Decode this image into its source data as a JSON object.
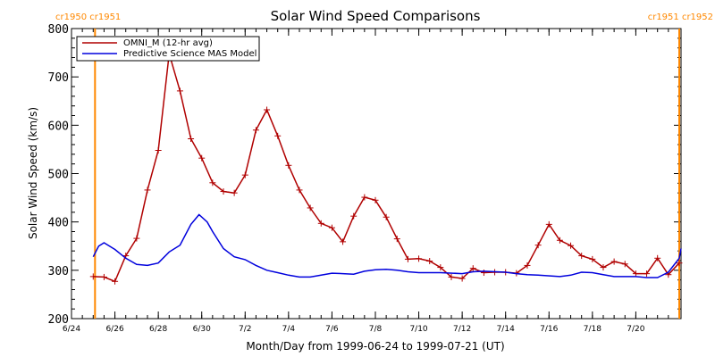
{
  "colors": {
    "observed": "#b00000",
    "model": "#0000dd",
    "carrington": "#ff8800",
    "axis": "#000000"
  },
  "chart_data": {
    "type": "line",
    "title": "Solar Wind Speed Comparisons",
    "xlabel": "Month/Day from 1999-06-24 to 1999-07-21 (UT)",
    "ylabel": "Solar Wind Speed (km/s)",
    "xlim": [
      "1999-06-24T00:00",
      "1999-07-22T02:00"
    ],
    "ylim": [
      200,
      800
    ],
    "x_tick_labels": [
      {
        "date": "1999-06-24",
        "label": "6/24"
      },
      {
        "date": "1999-06-26",
        "label": "6/26"
      },
      {
        "date": "1999-06-28",
        "label": "6/28"
      },
      {
        "date": "1999-06-30",
        "label": "6/30"
      },
      {
        "date": "1999-07-02",
        "label": "7/2"
      },
      {
        "date": "1999-07-04",
        "label": "7/4"
      },
      {
        "date": "1999-07-06",
        "label": "7/6"
      },
      {
        "date": "1999-07-08",
        "label": "7/8"
      },
      {
        "date": "1999-07-10",
        "label": "7/10"
      },
      {
        "date": "1999-07-12",
        "label": "7/12"
      },
      {
        "date": "1999-07-14",
        "label": "7/14"
      },
      {
        "date": "1999-07-16",
        "label": "7/16"
      },
      {
        "date": "1999-07-18",
        "label": "7/18"
      },
      {
        "date": "1999-07-20",
        "label": "7/20"
      }
    ],
    "y_ticks": [
      200,
      300,
      400,
      500,
      600,
      700,
      800
    ],
    "carrington_markers": [
      {
        "date": "1999-06-25T02:00",
        "label": "cr1950 cr1951",
        "align": "left"
      },
      {
        "date": "1999-07-22T02:00",
        "label": "cr1951 cr1952",
        "align": "right"
      }
    ],
    "legend_position": "top-left",
    "series": [
      {
        "name": "OMNI_M (12-hr avg)",
        "color_key": "observed",
        "markers": true,
        "points": [
          [
            "1999-06-25T00:00",
            287
          ],
          [
            "1999-06-25T12:00",
            286
          ],
          [
            "1999-06-26T00:00",
            277
          ],
          [
            "1999-06-26T12:00",
            330
          ],
          [
            "1999-06-27T00:00",
            366
          ],
          [
            "1999-06-27T12:00",
            466
          ],
          [
            "1999-06-28T00:00",
            548
          ],
          [
            "1999-06-28T12:00",
            748
          ],
          [
            "1999-06-29T00:00",
            671
          ],
          [
            "1999-06-29T12:00",
            572
          ],
          [
            "1999-06-30T00:00",
            532
          ],
          [
            "1999-06-30T12:00",
            481
          ],
          [
            "1999-07-01T00:00",
            463
          ],
          [
            "1999-07-01T12:00",
            460
          ],
          [
            "1999-07-02T00:00",
            497
          ],
          [
            "1999-07-02T12:00",
            590
          ],
          [
            "1999-07-03T00:00",
            632
          ],
          [
            "1999-07-03T12:00",
            578
          ],
          [
            "1999-07-04T00:00",
            517
          ],
          [
            "1999-07-04T12:00",
            466
          ],
          [
            "1999-07-05T00:00",
            429
          ],
          [
            "1999-07-05T12:00",
            397
          ],
          [
            "1999-07-06T00:00",
            388
          ],
          [
            "1999-07-06T12:00",
            359
          ],
          [
            "1999-07-07T00:00",
            412
          ],
          [
            "1999-07-07T12:00",
            451
          ],
          [
            "1999-07-08T00:00",
            445
          ],
          [
            "1999-07-08T12:00",
            410
          ],
          [
            "1999-07-09T00:00",
            365
          ],
          [
            "1999-07-09T12:00",
            323
          ],
          [
            "1999-07-10T00:00",
            324
          ],
          [
            "1999-07-10T12:00",
            319
          ],
          [
            "1999-07-11T00:00",
            306
          ],
          [
            "1999-07-11T12:00",
            286
          ],
          [
            "1999-07-12T00:00",
            283
          ],
          [
            "1999-07-12T12:00",
            304
          ],
          [
            "1999-07-13T00:00",
            295
          ],
          [
            "1999-07-13T12:00",
            296
          ],
          [
            "1999-07-14T00:00",
            296
          ],
          [
            "1999-07-14T12:00",
            294
          ],
          [
            "1999-07-15T00:00",
            310
          ],
          [
            "1999-07-15T12:00",
            352
          ],
          [
            "1999-07-16T00:00",
            395
          ],
          [
            "1999-07-16T12:00",
            362
          ],
          [
            "1999-07-17T00:00",
            351
          ],
          [
            "1999-07-17T12:00",
            330
          ],
          [
            "1999-07-18T00:00",
            323
          ],
          [
            "1999-07-18T12:00",
            306
          ],
          [
            "1999-07-19T00:00",
            318
          ],
          [
            "1999-07-19T12:00",
            313
          ],
          [
            "1999-07-20T00:00",
            293
          ],
          [
            "1999-07-20T12:00",
            293
          ],
          [
            "1999-07-21T00:00",
            325
          ],
          [
            "1999-07-21T12:00",
            291
          ],
          [
            "1999-07-22T00:00",
            315
          ]
        ]
      },
      {
        "name": "Predictive Science MAS Model",
        "color_key": "model",
        "markers": false,
        "points": [
          [
            "1999-06-25T00:00",
            328
          ],
          [
            "1999-06-25T06:00",
            350
          ],
          [
            "1999-06-25T12:00",
            357
          ],
          [
            "1999-06-26T00:00",
            343
          ],
          [
            "1999-06-26T12:00",
            325
          ],
          [
            "1999-06-27T00:00",
            312
          ],
          [
            "1999-06-27T12:00",
            310
          ],
          [
            "1999-06-28T00:00",
            315
          ],
          [
            "1999-06-28T12:00",
            338
          ],
          [
            "1999-06-29T00:00",
            352
          ],
          [
            "1999-06-29T12:00",
            395
          ],
          [
            "1999-06-29T21:00",
            415
          ],
          [
            "1999-06-30T06:00",
            400
          ],
          [
            "1999-06-30T12:00",
            380
          ],
          [
            "1999-07-01T00:00",
            345
          ],
          [
            "1999-07-01T12:00",
            328
          ],
          [
            "1999-07-02T00:00",
            322
          ],
          [
            "1999-07-02T12:00",
            310
          ],
          [
            "1999-07-03T00:00",
            300
          ],
          [
            "1999-07-03T12:00",
            295
          ],
          [
            "1999-07-04T00:00",
            290
          ],
          [
            "1999-07-04T12:00",
            286
          ],
          [
            "1999-07-05T00:00",
            286
          ],
          [
            "1999-07-05T12:00",
            290
          ],
          [
            "1999-07-06T00:00",
            294
          ],
          [
            "1999-07-06T12:00",
            293
          ],
          [
            "1999-07-07T00:00",
            292
          ],
          [
            "1999-07-07T12:00",
            298
          ],
          [
            "1999-07-08T00:00",
            301
          ],
          [
            "1999-07-08T12:00",
            302
          ],
          [
            "1999-07-09T00:00",
            300
          ],
          [
            "1999-07-09T12:00",
            297
          ],
          [
            "1999-07-10T00:00",
            295
          ],
          [
            "1999-07-11T00:00",
            295
          ],
          [
            "1999-07-12T00:00",
            293
          ],
          [
            "1999-07-12T12:00",
            297
          ],
          [
            "1999-07-13T00:00",
            298
          ],
          [
            "1999-07-14T00:00",
            296
          ],
          [
            "1999-07-14T12:00",
            293
          ],
          [
            "1999-07-15T00:00",
            291
          ],
          [
            "1999-07-15T12:00",
            290
          ],
          [
            "1999-07-16T12:00",
            287
          ],
          [
            "1999-07-17T00:00",
            290
          ],
          [
            "1999-07-17T12:00",
            296
          ],
          [
            "1999-07-18T00:00",
            295
          ],
          [
            "1999-07-18T12:00",
            291
          ],
          [
            "1999-07-19T00:00",
            287
          ],
          [
            "1999-07-20T00:00",
            287
          ],
          [
            "1999-07-20T12:00",
            285
          ],
          [
            "1999-07-21T00:00",
            285
          ],
          [
            "1999-07-21T12:00",
            296
          ],
          [
            "1999-07-22T00:00",
            325
          ],
          [
            "1999-07-22T02:00",
            345
          ]
        ]
      }
    ]
  }
}
